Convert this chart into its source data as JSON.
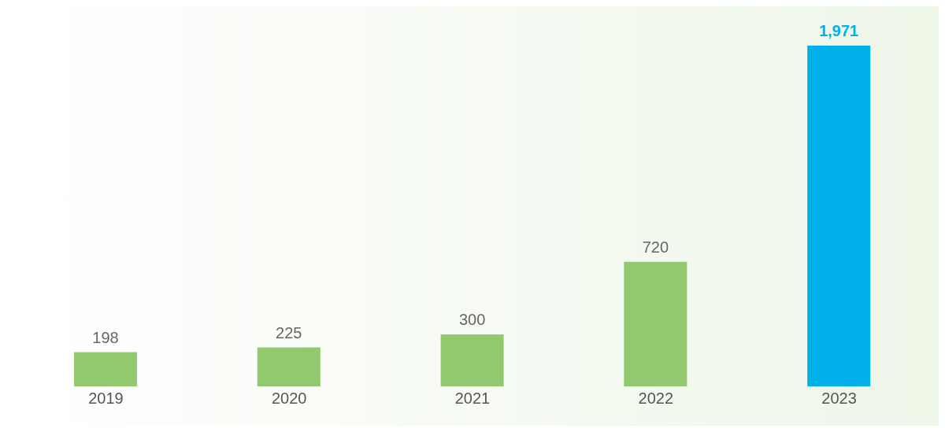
{
  "chart_data": {
    "type": "bar",
    "categories": [
      "2019",
      "2020",
      "2021",
      "2022",
      "2023"
    ],
    "values": [
      198,
      225,
      300,
      720,
      1971
    ],
    "value_labels": [
      "198",
      "225",
      "300",
      "720",
      "1,971"
    ],
    "colors": [
      "#92c96e",
      "#92c96e",
      "#92c96e",
      "#92c96e",
      "#00b0e8"
    ]
  }
}
